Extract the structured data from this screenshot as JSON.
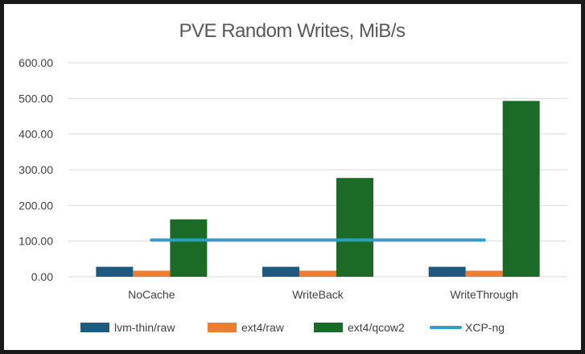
{
  "chart_data": {
    "type": "bar",
    "title": "PVE Random Writes, MiB/s",
    "categories": [
      "NoCache",
      "WriteBack",
      "WriteThrough"
    ],
    "ylim": [
      0,
      600
    ],
    "yticks": [
      "600.00",
      "500.00",
      "400.00",
      "300.00",
      "200.00",
      "100.00",
      "0.00"
    ],
    "ytick_values": [
      600,
      500,
      400,
      300,
      200,
      100,
      0
    ],
    "grid": true,
    "legend_position": "bottom",
    "series": [
      {
        "name": "lvm-thin/raw",
        "kind": "bar",
        "color": "#1f5a7e",
        "values": [
          28,
          28,
          28
        ]
      },
      {
        "name": "ext4/raw",
        "kind": "bar",
        "color": "#ed7d31",
        "values": [
          17,
          17,
          17
        ]
      },
      {
        "name": "ext4/qcow2",
        "kind": "bar",
        "color": "#1b6b26",
        "values": [
          161,
          277,
          493
        ]
      },
      {
        "name": "XCP-ng",
        "kind": "line",
        "color": "#2e9bd1",
        "values": [
          103,
          103,
          103
        ]
      }
    ]
  }
}
